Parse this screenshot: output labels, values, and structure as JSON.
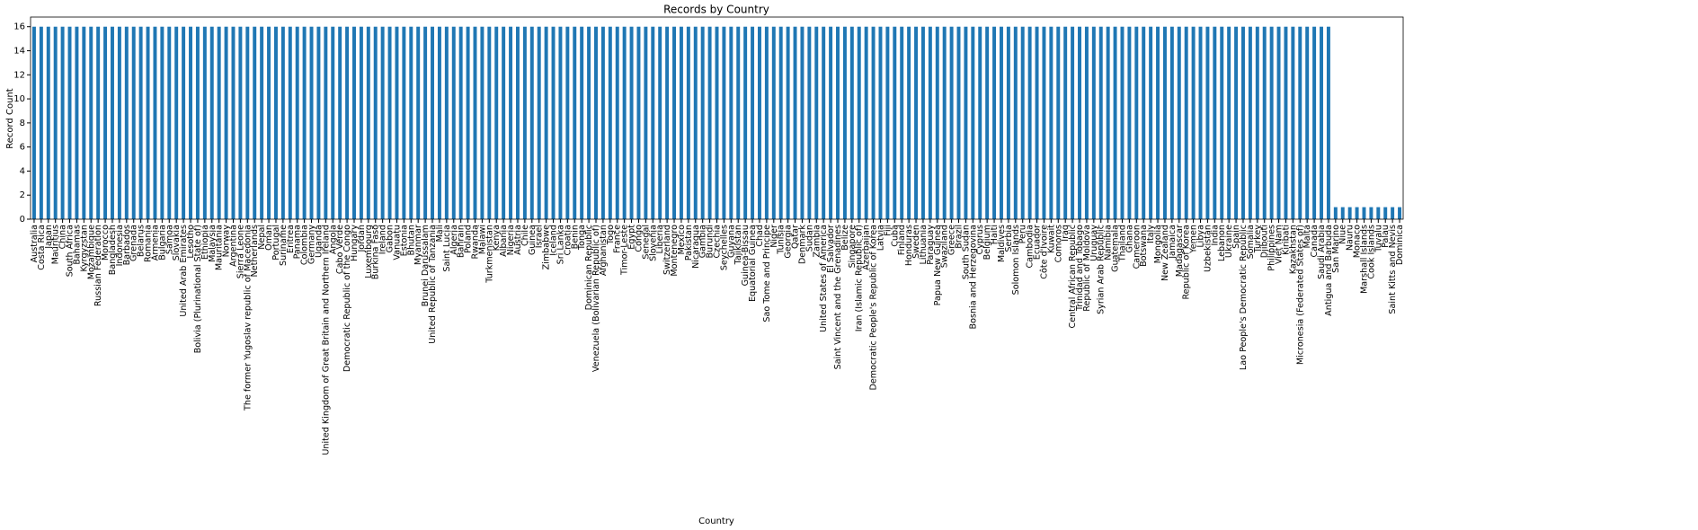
{
  "chart_data": {
    "type": "bar",
    "title": "Records by Country",
    "x_label": "Country",
    "y_label": "Record Count",
    "color": "#1f77b4",
    "grid": false,
    "ylim": [
      0,
      16.8
    ],
    "yticks": [
      0,
      2,
      4,
      6,
      8,
      10,
      12,
      14,
      16
    ],
    "categories": [
      "Australia",
      "Costa Rica",
      "Japan",
      "Mauritius",
      "China",
      "South Africa",
      "Bahamas",
      "Kyrgyzstan",
      "Mozambique",
      "Russian Federation",
      "Morocco",
      "Bangladesh",
      "Indonesia",
      "Barbados",
      "Grenada",
      "Belarus",
      "Romania",
      "Armenia",
      "Bulgaria",
      "Samoa",
      "Slovakia",
      "United Arab Emirates",
      "Lesotho",
      "Bolivia (Plurinational State of)",
      "Ethiopia",
      "Malaysia",
      "Mauritania",
      "Norway",
      "Argentina",
      "Sierra Leone",
      "The former Yugoslav republic of Macedonia",
      "Netherlands",
      "Nepal",
      "Oman",
      "Portugal",
      "Suriname",
      "Eritrea",
      "Panama",
      "Colombia",
      "Germany",
      "Uganda",
      "United Kingdom of Great Britain and Northern Ireland",
      "Angola",
      "Cabo Verde",
      "Democratic Republic of the Congo",
      "Hungary",
      "Jordan",
      "Luxembourg",
      "Burkina Faso",
      "Ireland",
      "Gabon",
      "Vanuatu",
      "Estonia",
      "Bhutan",
      "Myanmar",
      "Brunei Darussalam",
      "United Republic of Tanzania",
      "Mali",
      "Saint Lucia",
      "Algeria",
      "Bahrain",
      "Poland",
      "Rwanda",
      "Malawi",
      "Turkmenistan",
      "Kenya",
      "Albania",
      "Nigeria",
      "Austria",
      "Chile",
      "Guinea",
      "Israel",
      "Zimbabwe",
      "Iceland",
      "Sri Lanka",
      "Croatia",
      "Benin",
      "Tonga",
      "Dominican Republic",
      "Venezuela (Bolivarian Republic of)",
      "Afghanistan",
      "Togo",
      "France",
      "Timor-Leste",
      "Egypt",
      "Congo",
      "Senegal",
      "Slovenia",
      "Liberia",
      "Switzerland",
      "Montenegro",
      "Mexico",
      "Pakistan",
      "Nicaragua",
      "Gambia",
      "Burundi",
      "Czechia",
      "Seychelles",
      "Guyana",
      "Tajikistan",
      "Guinea-Bissau",
      "Equatorial Guinea",
      "Chad",
      "Sao Tome and Principe",
      "Niger",
      "Tunisia",
      "Georgia",
      "Qatar",
      "Denmark",
      "Sudan",
      "Zambia",
      "United States of America",
      "El Salvador",
      "Saint Vincent and the Grenadines",
      "Belize",
      "Singapore",
      "Iran (Islamic Republic of)",
      "Azerbaijan",
      "Democratic People's Republic of Korea",
      "Latvia",
      "Fiji",
      "Cuba",
      "Finland",
      "Honduras",
      "Sweden",
      "Lithuania",
      "Paraguay",
      "Papua New Guinea",
      "Swaziland",
      "Greece",
      "Brazil",
      "South Sudan",
      "Bosnia and Herzegovina",
      "Cyprus",
      "Belgium",
      "Haiti",
      "Maldives",
      "Serbia",
      "Solomon Islands",
      "Peru",
      "Cambodia",
      "Ecuador",
      "Côte d'Ivoire",
      "Kuwait",
      "Comoros",
      "Iraq",
      "Central African Republic",
      "Trinidad and Tobago",
      "Republic of Moldova",
      "Uruguay",
      "Syrian Arab Republic",
      "Namibia",
      "Guatemala",
      "Thailand",
      "Ghana",
      "Cameroon",
      "Botswana",
      "Italy",
      "Mongolia",
      "New Zealand",
      "Jamaica",
      "Madagascar",
      "Republic of Korea",
      "Yemen",
      "Libya",
      "Uzbekistan",
      "India",
      "Lebanon",
      "Ukraine",
      "Spain",
      "Lao People's Democratic Republic",
      "Somalia",
      "Turkey",
      "Djibouti",
      "Philippines",
      "Viet Nam",
      "Kiribati",
      "Kazakhstan",
      "Micronesia (Federated States of)",
      "Malta",
      "Canada",
      "Saudi Arabia",
      "Antigua and Barbuda",
      "San Marino",
      "Niue",
      "Nauru",
      "Monaco",
      "Marshall Islands",
      "Cook Islands",
      "Tuvalu",
      "Palau",
      "Saint Kitts and Nevis",
      "Dominica"
    ],
    "values": [
      16,
      16,
      16,
      16,
      16,
      16,
      16,
      16,
      16,
      16,
      16,
      16,
      16,
      16,
      16,
      16,
      16,
      16,
      16,
      16,
      16,
      16,
      16,
      16,
      16,
      16,
      16,
      16,
      16,
      16,
      16,
      16,
      16,
      16,
      16,
      16,
      16,
      16,
      16,
      16,
      16,
      16,
      16,
      16,
      16,
      16,
      16,
      16,
      16,
      16,
      16,
      16,
      16,
      16,
      16,
      16,
      16,
      16,
      16,
      16,
      16,
      16,
      16,
      16,
      16,
      16,
      16,
      16,
      16,
      16,
      16,
      16,
      16,
      16,
      16,
      16,
      16,
      16,
      16,
      16,
      16,
      16,
      16,
      16,
      16,
      16,
      16,
      16,
      16,
      16,
      16,
      16,
      16,
      16,
      16,
      16,
      16,
      16,
      16,
      16,
      16,
      16,
      16,
      16,
      16,
      16,
      16,
      16,
      16,
      16,
      16,
      16,
      16,
      16,
      16,
      16,
      16,
      16,
      16,
      16,
      16,
      16,
      16,
      16,
      16,
      16,
      16,
      16,
      16,
      16,
      16,
      16,
      16,
      16,
      16,
      16,
      16,
      16,
      16,
      16,
      16,
      16,
      16,
      16,
      16,
      16,
      16,
      16,
      16,
      16,
      16,
      16,
      16,
      16,
      16,
      16,
      16,
      16,
      16,
      16,
      16,
      16,
      16,
      16,
      16,
      16,
      16,
      16,
      16,
      16,
      16,
      16,
      16,
      16,
      16,
      16,
      16,
      16,
      16,
      16,
      16,
      16,
      16,
      1,
      1,
      1,
      1,
      1,
      1,
      1,
      1,
      1,
      1
    ]
  }
}
